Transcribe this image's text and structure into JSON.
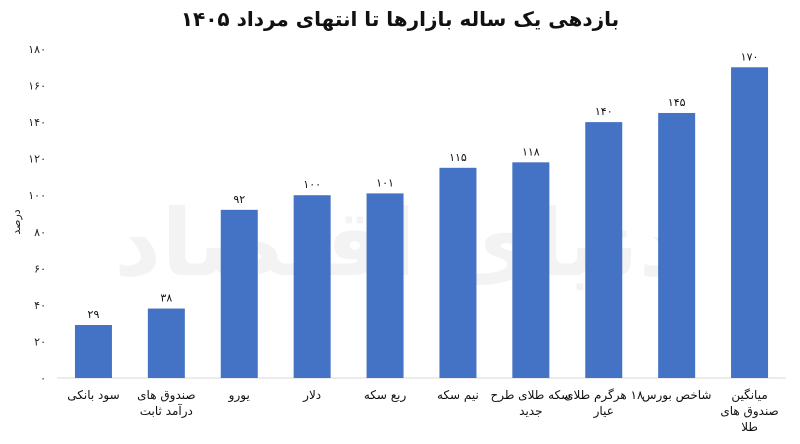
{
  "chart_data": {
    "type": "bar",
    "title": "بازدهی یک ساله بازارها تا انتهای مرداد ۱۴۰۵",
    "ylabel": "درصد",
    "ylim": [
      0,
      180
    ],
    "yticks": [
      0,
      20,
      40,
      60,
      80,
      100,
      120,
      140,
      160,
      180
    ],
    "ytick_labels": [
      "۰",
      "۲۰",
      "۴۰",
      "۶۰",
      "۸۰",
      "۱۰۰",
      "۱۲۰",
      "۱۴۰",
      "۱۶۰",
      "۱۸۰"
    ],
    "categories": [
      [
        "سود بانکی"
      ],
      [
        "صندوق های",
        "درآمد ثابت"
      ],
      [
        "یورو"
      ],
      [
        "دلار"
      ],
      [
        "ربع سکه"
      ],
      [
        "نیم سکه"
      ],
      [
        "سکه طلای طرح",
        "جدید"
      ],
      [
        "۱۸ هرگرم طلای",
        "عیار"
      ],
      [
        "شاخص بورس"
      ],
      [
        "میانگین",
        "صندوق های",
        "طلا"
      ]
    ],
    "values": [
      29,
      38,
      92,
      100,
      101,
      115,
      118,
      140,
      145,
      170
    ],
    "value_labels": [
      "۲۹",
      "۳۸",
      "۹۲",
      "۱۰۰",
      "۱۰۱",
      "۱۱۵",
      "۱۱۸",
      "۱۴۰",
      "۱۴۵",
      "۱۷۰"
    ],
    "bar_color": "#4472C4",
    "grid": false,
    "watermark": "دنیای اقتصاد"
  }
}
